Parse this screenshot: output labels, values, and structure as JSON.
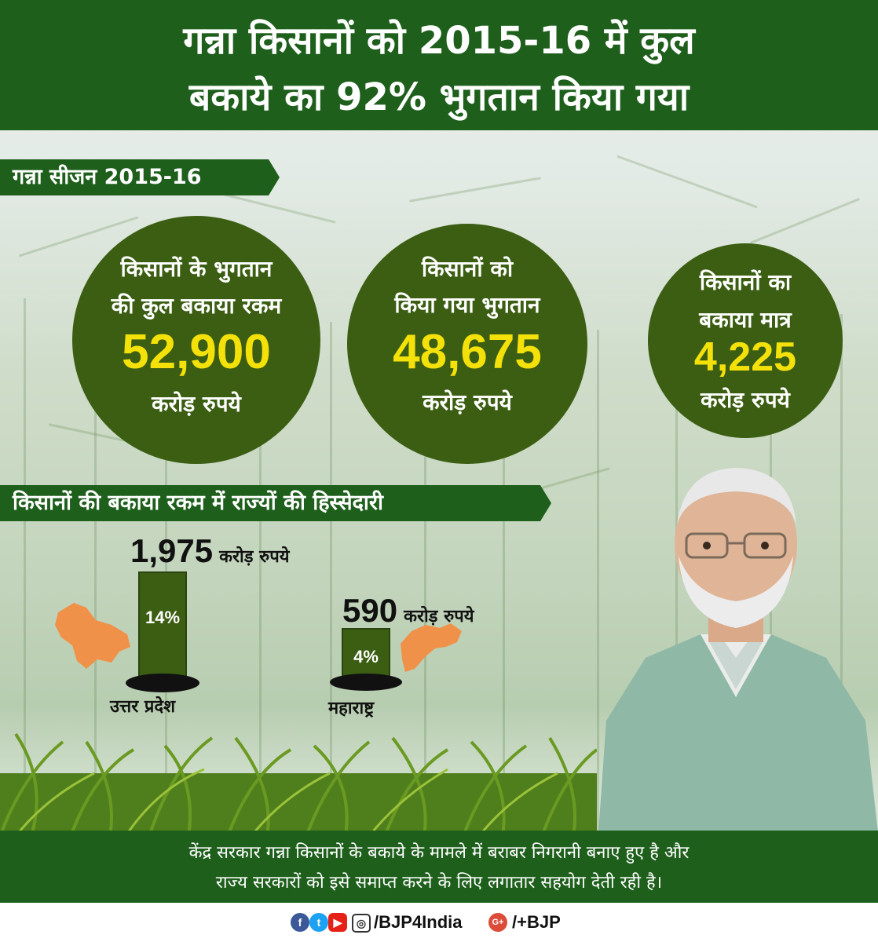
{
  "header": {
    "title_line_1": "गन्ना किसानों को 2015-16 में कुल",
    "title_line_2": "बकाये का 92% भुगतान किया गया"
  },
  "season_label": "गन्ना सीजन 2015-16",
  "circles": [
    {
      "line_1": "किसानों के भुगतान",
      "line_2": "की कुल बकाया रकम",
      "value": "52,900",
      "unit": "करोड़ रुपये"
    },
    {
      "line_1": "किसानों को",
      "line_2": "किया गया भुगतान",
      "value": "48,675",
      "unit": "करोड़ रुपये"
    },
    {
      "line_1": "किसानों का",
      "line_2": "बकाया मात्र",
      "value": "4,225",
      "unit": "करोड़ रुपये"
    }
  ],
  "state_share_label": "किसानों की बकाया रकम में राज्यों की हिस्सेदारी",
  "states": [
    {
      "name": "उत्तर प्रदेश",
      "amount": "1,975",
      "unit": "करोड़ रुपये",
      "percent": "14%"
    },
    {
      "name": "महाराष्ट्र",
      "amount": "590",
      "unit": "करोड़ रुपये",
      "percent": "4%"
    }
  ],
  "footer": {
    "line_1": "केंद्र सरकार गन्ना किसानों के बकाये के मामले में बराबर निगरानी बनाए हुए है और",
    "line_2": "राज्य सरकारों को इसे समाप्त करने के लिए लगातार सहयोग देती रही है।"
  },
  "social": {
    "icons": [
      "facebook-icon",
      "twitter-icon",
      "youtube-icon",
      "instagram-icon",
      "google-plus-icon"
    ],
    "handle_1": "/BJP4India",
    "handle_2": "/+BJP"
  },
  "colors": {
    "header_green": "#1e5f1c",
    "circle_green": "#3b5e12",
    "highlight_yellow": "#f5e10a",
    "map_orange": "#f0914a"
  }
}
